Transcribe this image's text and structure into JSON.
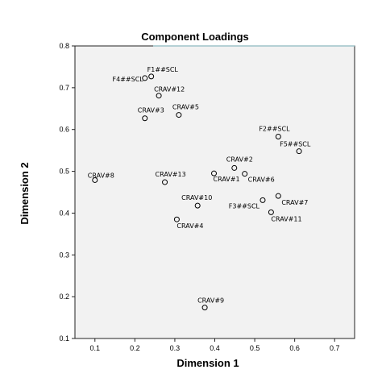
{
  "chart_data": {
    "type": "scatter",
    "title": "Component Loadings",
    "xlabel": "Dimension 1",
    "ylabel": "Dimension 2",
    "xlim": [
      0.05,
      0.75
    ],
    "ylim": [
      0.1,
      0.8
    ],
    "xticks": [
      "0.1",
      "0.2",
      "0.3",
      "0.4",
      "0.5",
      "0.6",
      "0.7"
    ],
    "yticks": [
      "0.1",
      "0.2",
      "0.3",
      "0.4",
      "0.5",
      "0.6",
      "0.7",
      "0.8"
    ],
    "grid": false,
    "plot_background": "#f2f2f2",
    "marker_color": "#000000",
    "points": [
      {
        "label": "F1##SCL",
        "x": 0.241,
        "y": 0.727
      },
      {
        "label": "F4##SCL",
        "x": 0.225,
        "y": 0.723
      },
      {
        "label": "CRAV#12",
        "x": 0.26,
        "y": 0.681
      },
      {
        "label": "CRAV#3",
        "x": 0.225,
        "y": 0.627
      },
      {
        "label": "CRAV#5",
        "x": 0.31,
        "y": 0.635
      },
      {
        "label": "F2##SCL",
        "x": 0.559,
        "y": 0.583
      },
      {
        "label": "F5##SCL",
        "x": 0.611,
        "y": 0.548
      },
      {
        "label": "CRAV#8",
        "x": 0.1,
        "y": 0.479
      },
      {
        "label": "CRAV#13",
        "x": 0.275,
        "y": 0.474
      },
      {
        "label": "CRAV#2",
        "x": 0.449,
        "y": 0.508
      },
      {
        "label": "CRAV#1",
        "x": 0.398,
        "y": 0.495
      },
      {
        "label": "CRAV#6",
        "x": 0.475,
        "y": 0.494
      },
      {
        "label": "CRAV#10",
        "x": 0.357,
        "y": 0.418
      },
      {
        "label": "F3##SCL",
        "x": 0.52,
        "y": 0.431
      },
      {
        "label": "CRAV#7",
        "x": 0.559,
        "y": 0.441
      },
      {
        "label": "CRAV#11",
        "x": 0.541,
        "y": 0.402
      },
      {
        "label": "CRAV#4",
        "x": 0.305,
        "y": 0.385
      },
      {
        "label": "CRAV#9",
        "x": 0.375,
        "y": 0.174
      }
    ]
  }
}
